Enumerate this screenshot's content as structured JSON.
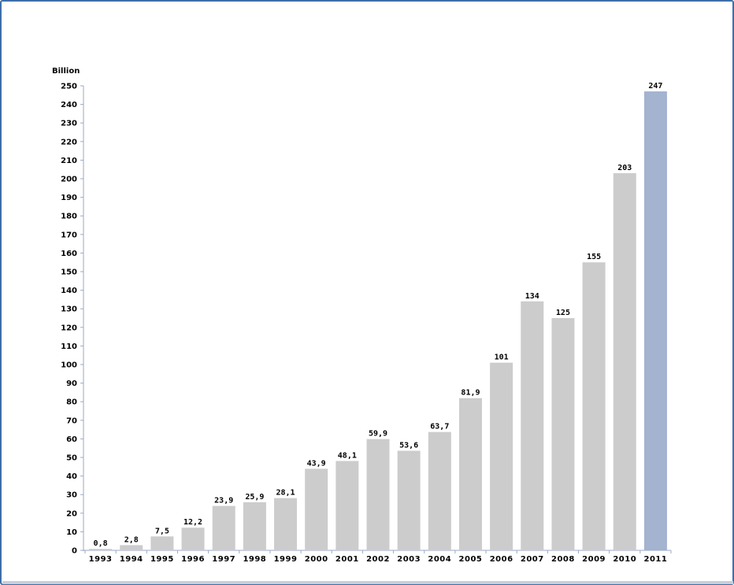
{
  "chart_data": {
    "type": "bar",
    "unit_label": "Billion",
    "categories": [
      "1993",
      "1994",
      "1995",
      "1996",
      "1997",
      "1998",
      "1999",
      "2000",
      "2001",
      "2002",
      "2003",
      "2004",
      "2005",
      "2006",
      "2007",
      "2008",
      "2009",
      "2010",
      "2011"
    ],
    "values": [
      0.8,
      2.8,
      7.5,
      12.2,
      23.9,
      25.9,
      28.1,
      43.9,
      48.1,
      59.9,
      53.6,
      63.7,
      81.9,
      101,
      134,
      125,
      155,
      203,
      247
    ],
    "value_labels": [
      "0,8",
      "2,8",
      "7,5",
      "12,2",
      "23,9",
      "25,9",
      "28,1",
      "43,9",
      "48,1",
      "59,9",
      "53,6",
      "63,7",
      "81,9",
      "101",
      "134",
      "125",
      "155",
      "203",
      "247"
    ],
    "ylim": [
      0,
      250
    ],
    "yticks": [
      0,
      10,
      20,
      30,
      40,
      50,
      60,
      70,
      80,
      90,
      100,
      110,
      120,
      130,
      140,
      150,
      160,
      170,
      180,
      190,
      200,
      210,
      220,
      230,
      240,
      250
    ],
    "grid": false,
    "legend": "none",
    "colors": {
      "bar": "#cccccc",
      "highlight_bar": "#a3b3d0",
      "axis": "#9aa9c6",
      "frame": "#3f6ea8"
    },
    "highlight_index": 18
  }
}
